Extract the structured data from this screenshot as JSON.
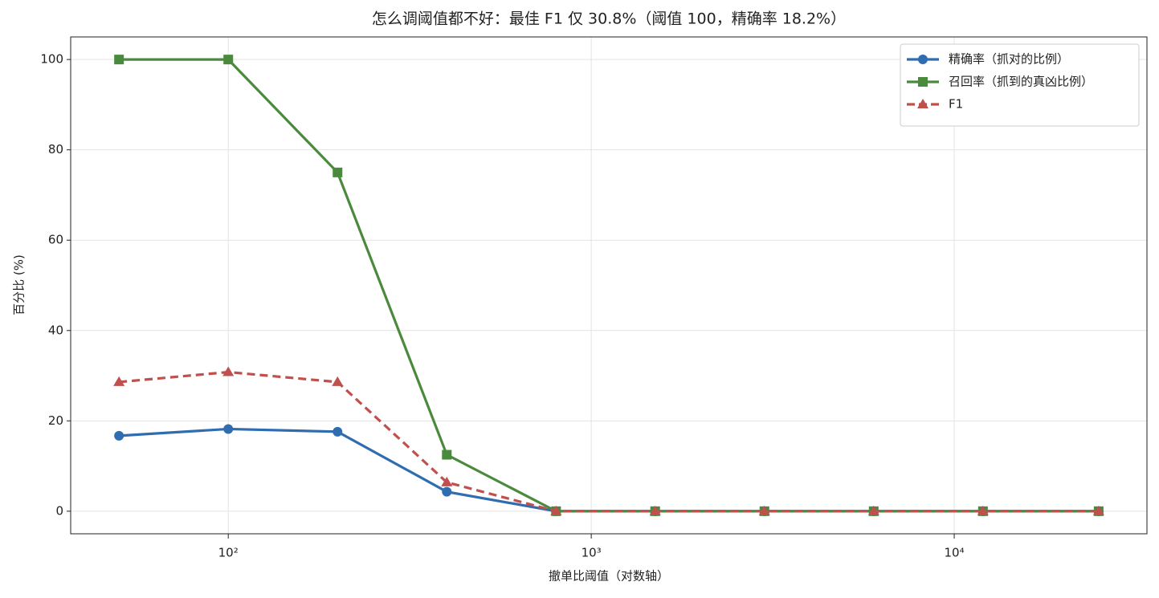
{
  "chart_data": {
    "type": "line",
    "title": "怎么调阈值都不好：最佳 F1 仅 30.8%（阈值 100，精确率 18.2%）",
    "x_label": "撤单比阈值（对数轴）",
    "y_label": "百分比 (%)",
    "x": [
      50,
      100,
      200,
      400,
      800,
      1500,
      3000,
      6000,
      12000,
      25000
    ],
    "series": [
      {
        "name": "精确率（抓对的比例）",
        "color": "#2f6db0",
        "marker": "circle",
        "dash": false,
        "values": [
          16.7,
          18.2,
          17.6,
          4.3,
          0,
          0,
          0,
          0,
          0,
          0
        ]
      },
      {
        "name": "召回率（抓到的真凶比例）",
        "color": "#4a8a3c",
        "marker": "square",
        "dash": false,
        "values": [
          100,
          100,
          75,
          12.5,
          0,
          0,
          0,
          0,
          0,
          0
        ]
      },
      {
        "name": "F1",
        "color": "#c0504d",
        "marker": "triangle",
        "dash": true,
        "values": [
          28.6,
          30.8,
          28.6,
          6.4,
          0,
          0,
          0,
          0,
          0,
          0
        ]
      }
    ],
    "xscale": "log",
    "xlim": [
      36.8,
      33960
    ],
    "xticks": [
      {
        "value": 100,
        "label": "10²"
      },
      {
        "value": 1000,
        "label": "10³"
      },
      {
        "value": 10000,
        "label": "10⁴"
      }
    ],
    "ylim": [
      -5,
      105
    ],
    "yticks": [
      0,
      20,
      40,
      60,
      80,
      100
    ],
    "grid": true,
    "legend": "upper right"
  }
}
